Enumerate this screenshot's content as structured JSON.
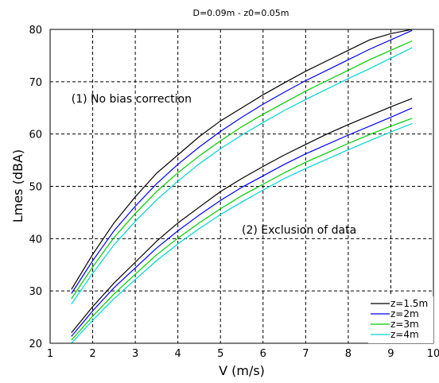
{
  "chart_data": {
    "type": "line",
    "title": "D=0.09m - z0=0.05m",
    "xlabel": "V (m/s)",
    "ylabel": "Lmes (dBA)",
    "xlim": [
      1,
      10
    ],
    "ylim": [
      20,
      80
    ],
    "xticks": [
      1,
      2,
      3,
      4,
      5,
      6,
      7,
      8,
      9,
      10
    ],
    "yticks": [
      20,
      30,
      40,
      50,
      60,
      70,
      80
    ],
    "grid": true,
    "legend_position": "bottom-right",
    "x": [
      1.5,
      2,
      2.5,
      3,
      3.5,
      4,
      4.5,
      5,
      5.5,
      6,
      6.5,
      7,
      7.5,
      8,
      8.5,
      9,
      9.5
    ],
    "annotations": [
      {
        "text": "(1) No bias correction",
        "x": 1.5,
        "y": 66
      },
      {
        "text": "(2) Exclusion of data",
        "x": 5.5,
        "y": 41
      }
    ],
    "legend": [
      {
        "label": "z=1.5m",
        "color": "#000000"
      },
      {
        "label": "z=2m",
        "color": "#0000ff"
      },
      {
        "label": "z=3m",
        "color": "#00cc00"
      },
      {
        "label": "z=4m",
        "color": "#00d4d4"
      }
    ],
    "series": [
      {
        "name": "z=1.5m",
        "group": "(1) No bias correction",
        "color": "#000000",
        "values": [
          30.3,
          37.0,
          43.0,
          48.0,
          52.5,
          56.0,
          59.5,
          62.5,
          65.0,
          67.5,
          69.8,
          72.0,
          74.0,
          76.0,
          78.0,
          79.2,
          80.0
        ]
      },
      {
        "name": "z=2m",
        "group": "(1) No bias correction",
        "color": "#0000ff",
        "values": [
          29.5,
          35.8,
          41.5,
          46.2,
          50.5,
          54.2,
          57.5,
          60.5,
          63.2,
          65.7,
          68.0,
          70.2,
          72.2,
          74.2,
          76.2,
          78.0,
          79.8
        ]
      },
      {
        "name": "z=3m",
        "group": "(1) No bias correction",
        "color": "#00cc00",
        "values": [
          28.5,
          34.6,
          40.2,
          44.8,
          49.0,
          52.6,
          55.8,
          58.7,
          61.4,
          63.8,
          66.0,
          68.2,
          70.2,
          72.2,
          74.2,
          76.0,
          77.8
        ]
      },
      {
        "name": "z=4m",
        "group": "(1) No bias correction",
        "color": "#00d4d4",
        "values": [
          27.5,
          33.4,
          38.8,
          43.3,
          47.4,
          51.0,
          54.3,
          57.2,
          59.8,
          62.2,
          64.5,
          66.6,
          68.6,
          70.6,
          72.5,
          74.5,
          76.5
        ]
      },
      {
        "name": "z=1.5m",
        "group": "(2) Exclusion of data",
        "color": "#000000",
        "values": [
          22.0,
          27.0,
          31.5,
          35.5,
          39.5,
          43.0,
          46.0,
          49.0,
          51.5,
          53.8,
          56.0,
          58.0,
          60.0,
          61.8,
          63.5,
          65.2,
          66.8
        ]
      },
      {
        "name": "z=2m",
        "group": "(2) Exclusion of data",
        "color": "#0000ff",
        "values": [
          21.3,
          26.2,
          30.6,
          34.4,
          38.2,
          41.5,
          44.5,
          47.3,
          49.8,
          52.0,
          54.2,
          56.2,
          58.0,
          59.8,
          61.5,
          63.2,
          65.0
        ]
      },
      {
        "name": "z=3m",
        "group": "(2) Exclusion of data",
        "color": "#00cc00",
        "values": [
          20.6,
          25.2,
          29.4,
          33.2,
          36.9,
          40.1,
          43.0,
          45.7,
          48.2,
          50.4,
          52.6,
          54.6,
          56.4,
          58.2,
          59.9,
          61.5,
          63.0
        ]
      },
      {
        "name": "z=4m",
        "group": "(2) Exclusion of data",
        "color": "#00d4d4",
        "values": [
          20.0,
          24.4,
          28.5,
          32.2,
          35.8,
          39.0,
          41.9,
          44.6,
          47.0,
          49.3,
          51.5,
          53.4,
          55.2,
          57.0,
          58.7,
          60.4,
          62.0
        ]
      }
    ]
  }
}
